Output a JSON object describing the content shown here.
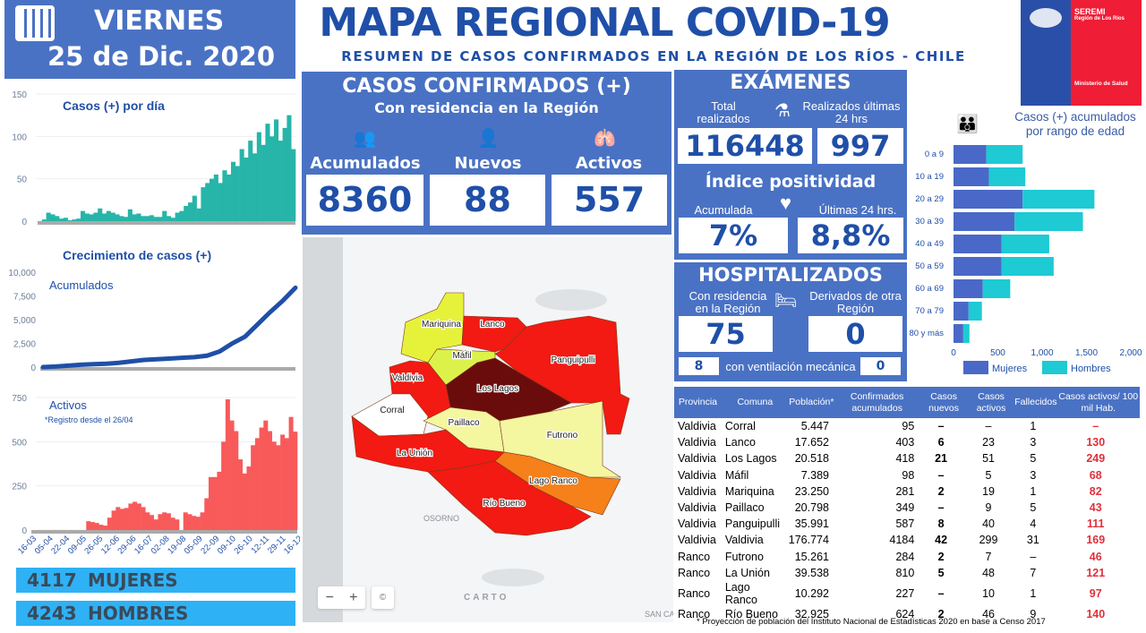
{
  "header": {
    "day": "VIERNES",
    "date": "25 de Dic. 2020",
    "title": "MAPA REGIONAL COVID-19",
    "subtitle": "RESUMEN DE CASOS CONFIRMADOS EN LA REGIÓN DE LOS RÍOS - CHILE"
  },
  "logo": {
    "line1": "SEREMI",
    "line2": "Región de Los Ríos",
    "line3": "Ministerio de Salud"
  },
  "casos": {
    "title": "CASOS CONFIRMADOS (+)",
    "subtitle": "Con residencia en la Región",
    "acumulados_label": "Acumulados",
    "acumulados": "8360",
    "nuevos_label": "Nuevos",
    "nuevos": "88",
    "activos_label": "Activos",
    "activos": "557"
  },
  "examenes": {
    "title": "EXÁMENES",
    "total_label": "Total realizados",
    "total": "116448",
    "ult_label": "Realizados últimas 24 hrs",
    "ult": "997",
    "indice_title": "Índice positividad",
    "acum_label": "Acumulada",
    "acum": "7%",
    "ult24_label": "Últimas 24 hrs.",
    "ult24": "8,8%"
  },
  "hospitalizados": {
    "title": "HOSPITALIZADOS",
    "res_label": "Con residencia en la Región",
    "res": "75",
    "der_label": "Derivados de otra Región",
    "der": "0",
    "vent_res": "8",
    "vent_label": "con ventilación mecánica",
    "vent_der": "0"
  },
  "genders": {
    "mujeres": "4117",
    "mujeres_label": "MUJERES",
    "hombres": "4243",
    "hombres_label": "HOMBRES"
  },
  "map": {
    "regions": [
      {
        "name": "Mariquina",
        "color": "#e6f23a"
      },
      {
        "name": "Lanco",
        "color": "#f21a12"
      },
      {
        "name": "Panguipulli",
        "color": "#f21a12"
      },
      {
        "name": "Máfil",
        "color": "#dcf24a"
      },
      {
        "name": "Los Lagos",
        "color": "#6b0c0c"
      },
      {
        "name": "Valdivia",
        "color": "#f21a12"
      },
      {
        "name": "Corral",
        "color": "#ffffff"
      },
      {
        "name": "Paillaco",
        "color": "#f4f6a0"
      },
      {
        "name": "Futrono",
        "color": "#f4f6a0"
      },
      {
        "name": "La Unión",
        "color": "#f21a12"
      },
      {
        "name": "Lago Ranco",
        "color": "#f6801a"
      },
      {
        "name": "Río Bueno",
        "color": "#f21a12"
      }
    ],
    "city": "OSORNO",
    "attribution": "CARTO",
    "city2": "SAN CA",
    "zoom_out": "−",
    "zoom_in": "+",
    "copyright": "©"
  },
  "table": {
    "headers": [
      "Provincia",
      "Comuna",
      "Población*",
      "Confirmados acumulados",
      "Casos nuevos",
      "Casos activos",
      "Fallecidos",
      "Casos activos/ 100 mil Hab."
    ],
    "rows": [
      [
        "Valdivia",
        "Corral",
        "5.447",
        "95",
        "–",
        "–",
        "1",
        "–"
      ],
      [
        "Valdivia",
        "Lanco",
        "17.652",
        "403",
        "6",
        "23",
        "3",
        "130"
      ],
      [
        "Valdivia",
        "Los Lagos",
        "20.518",
        "418",
        "21",
        "51",
        "5",
        "249"
      ],
      [
        "Valdivia",
        "Máfil",
        "7.389",
        "98",
        "–",
        "5",
        "3",
        "68"
      ],
      [
        "Valdivia",
        "Mariquina",
        "23.250",
        "281",
        "2",
        "19",
        "1",
        "82"
      ],
      [
        "Valdivia",
        "Paillaco",
        "20.798",
        "349",
        "–",
        "9",
        "5",
        "43"
      ],
      [
        "Valdivia",
        "Panguipulli",
        "35.991",
        "587",
        "8",
        "40",
        "4",
        "111"
      ],
      [
        "Valdivia",
        "Valdivia",
        "176.774",
        "4184",
        "42",
        "299",
        "31",
        "169"
      ],
      [
        "Ranco",
        "Futrono",
        "15.261",
        "284",
        "2",
        "7",
        "–",
        "46"
      ],
      [
        "Ranco",
        "La Unión",
        "39.538",
        "810",
        "5",
        "48",
        "7",
        "121"
      ],
      [
        "Ranco",
        "Lago Ranco",
        "10.292",
        "227",
        "–",
        "10",
        "1",
        "97"
      ],
      [
        "Ranco",
        "Río Bueno",
        "32.925",
        "624",
        "2",
        "46",
        "9",
        "140"
      ]
    ],
    "footnote": "* Proyección de población del Instituto Nacional de Estadísticas 2020 en base a Censo 2017"
  },
  "chart_data": [
    {
      "type": "bar",
      "title": "Casos (+) por día",
      "ylim": [
        0,
        150
      ],
      "yticks": [
        0,
        50,
        100,
        150
      ],
      "color": "#26b5a8",
      "values": [
        0,
        2,
        10,
        8,
        6,
        3,
        4,
        1,
        2,
        3,
        12,
        9,
        8,
        10,
        15,
        9,
        12,
        10,
        8,
        6,
        5,
        14,
        8,
        9,
        6,
        6,
        7,
        5,
        5,
        12,
        6,
        4,
        10,
        12,
        18,
        22,
        30,
        15,
        40,
        45,
        50,
        55,
        45,
        60,
        55,
        70,
        65,
        85,
        75,
        95,
        80,
        105,
        90,
        115,
        100,
        120,
        95,
        110,
        125,
        85
      ]
    },
    {
      "type": "line",
      "title": "Crecimiento de casos (+)",
      "series_label": "Acumulados",
      "ylim": [
        0,
        10000
      ],
      "yticks": [
        "0",
        "2,500",
        "5,000",
        "7,500",
        "10,000"
      ],
      "ytick_values": [
        0,
        2500,
        5000,
        7500,
        10000
      ],
      "color": "#1f4fa8",
      "values": [
        0,
        60,
        150,
        250,
        310,
        350,
        450,
        600,
        750,
        820,
        900,
        980,
        1050,
        1200,
        1650,
        2500,
        3200,
        4500,
        5800,
        7000,
        8360
      ]
    },
    {
      "type": "bar",
      "title": "Activos",
      "note": "*Registro desde el 26/04",
      "ylim": [
        0,
        750
      ],
      "yticks": [
        0,
        250,
        500,
        750
      ],
      "color": "#f85a5a",
      "xticks": [
        "16-03",
        "05-04",
        "22-04",
        "09-05",
        "26-05",
        "12-06",
        "29-06",
        "16-07",
        "02-08",
        "19-08",
        "05-09",
        "22-09",
        "09-10",
        "26-10",
        "12-11",
        "29-11",
        "16-12"
      ],
      "values": [
        0,
        0,
        0,
        0,
        0,
        0,
        0,
        0,
        0,
        0,
        0,
        0,
        0,
        50,
        45,
        40,
        30,
        25,
        70,
        110,
        130,
        120,
        125,
        150,
        160,
        150,
        130,
        100,
        85,
        60,
        90,
        100,
        95,
        70,
        60,
        0,
        100,
        90,
        80,
        75,
        100,
        180,
        300,
        300,
        330,
        500,
        740,
        620,
        560,
        400,
        320,
        360,
        480,
        520,
        580,
        620,
        560,
        500,
        480,
        540,
        520,
        640,
        557
      ]
    },
    {
      "type": "bar",
      "orientation": "horizontal",
      "stacked": true,
      "title": "Casos (+) acumulados por rango de edad",
      "categories": [
        "0 a 9",
        "10 a 19",
        "20 a 29",
        "30 a 39",
        "40 a 49",
        "50 a 59",
        "60 a 69",
        "70 a 79",
        "80 y más"
      ],
      "xlim": [
        0,
        2000
      ],
      "xticks": [
        "0",
        "500",
        "1,000",
        "1,500",
        "2,000"
      ],
      "xtick_values": [
        0,
        500,
        1000,
        1500,
        2000
      ],
      "series": [
        {
          "name": "Mujeres",
          "color": "#4a68c8",
          "values": [
            370,
            400,
            780,
            690,
            540,
            540,
            330,
            170,
            110
          ]
        },
        {
          "name": "Hombres",
          "color": "#1ecad3",
          "values": [
            410,
            410,
            810,
            770,
            540,
            590,
            310,
            150,
            70
          ]
        }
      ],
      "legend": "bottom"
    }
  ]
}
